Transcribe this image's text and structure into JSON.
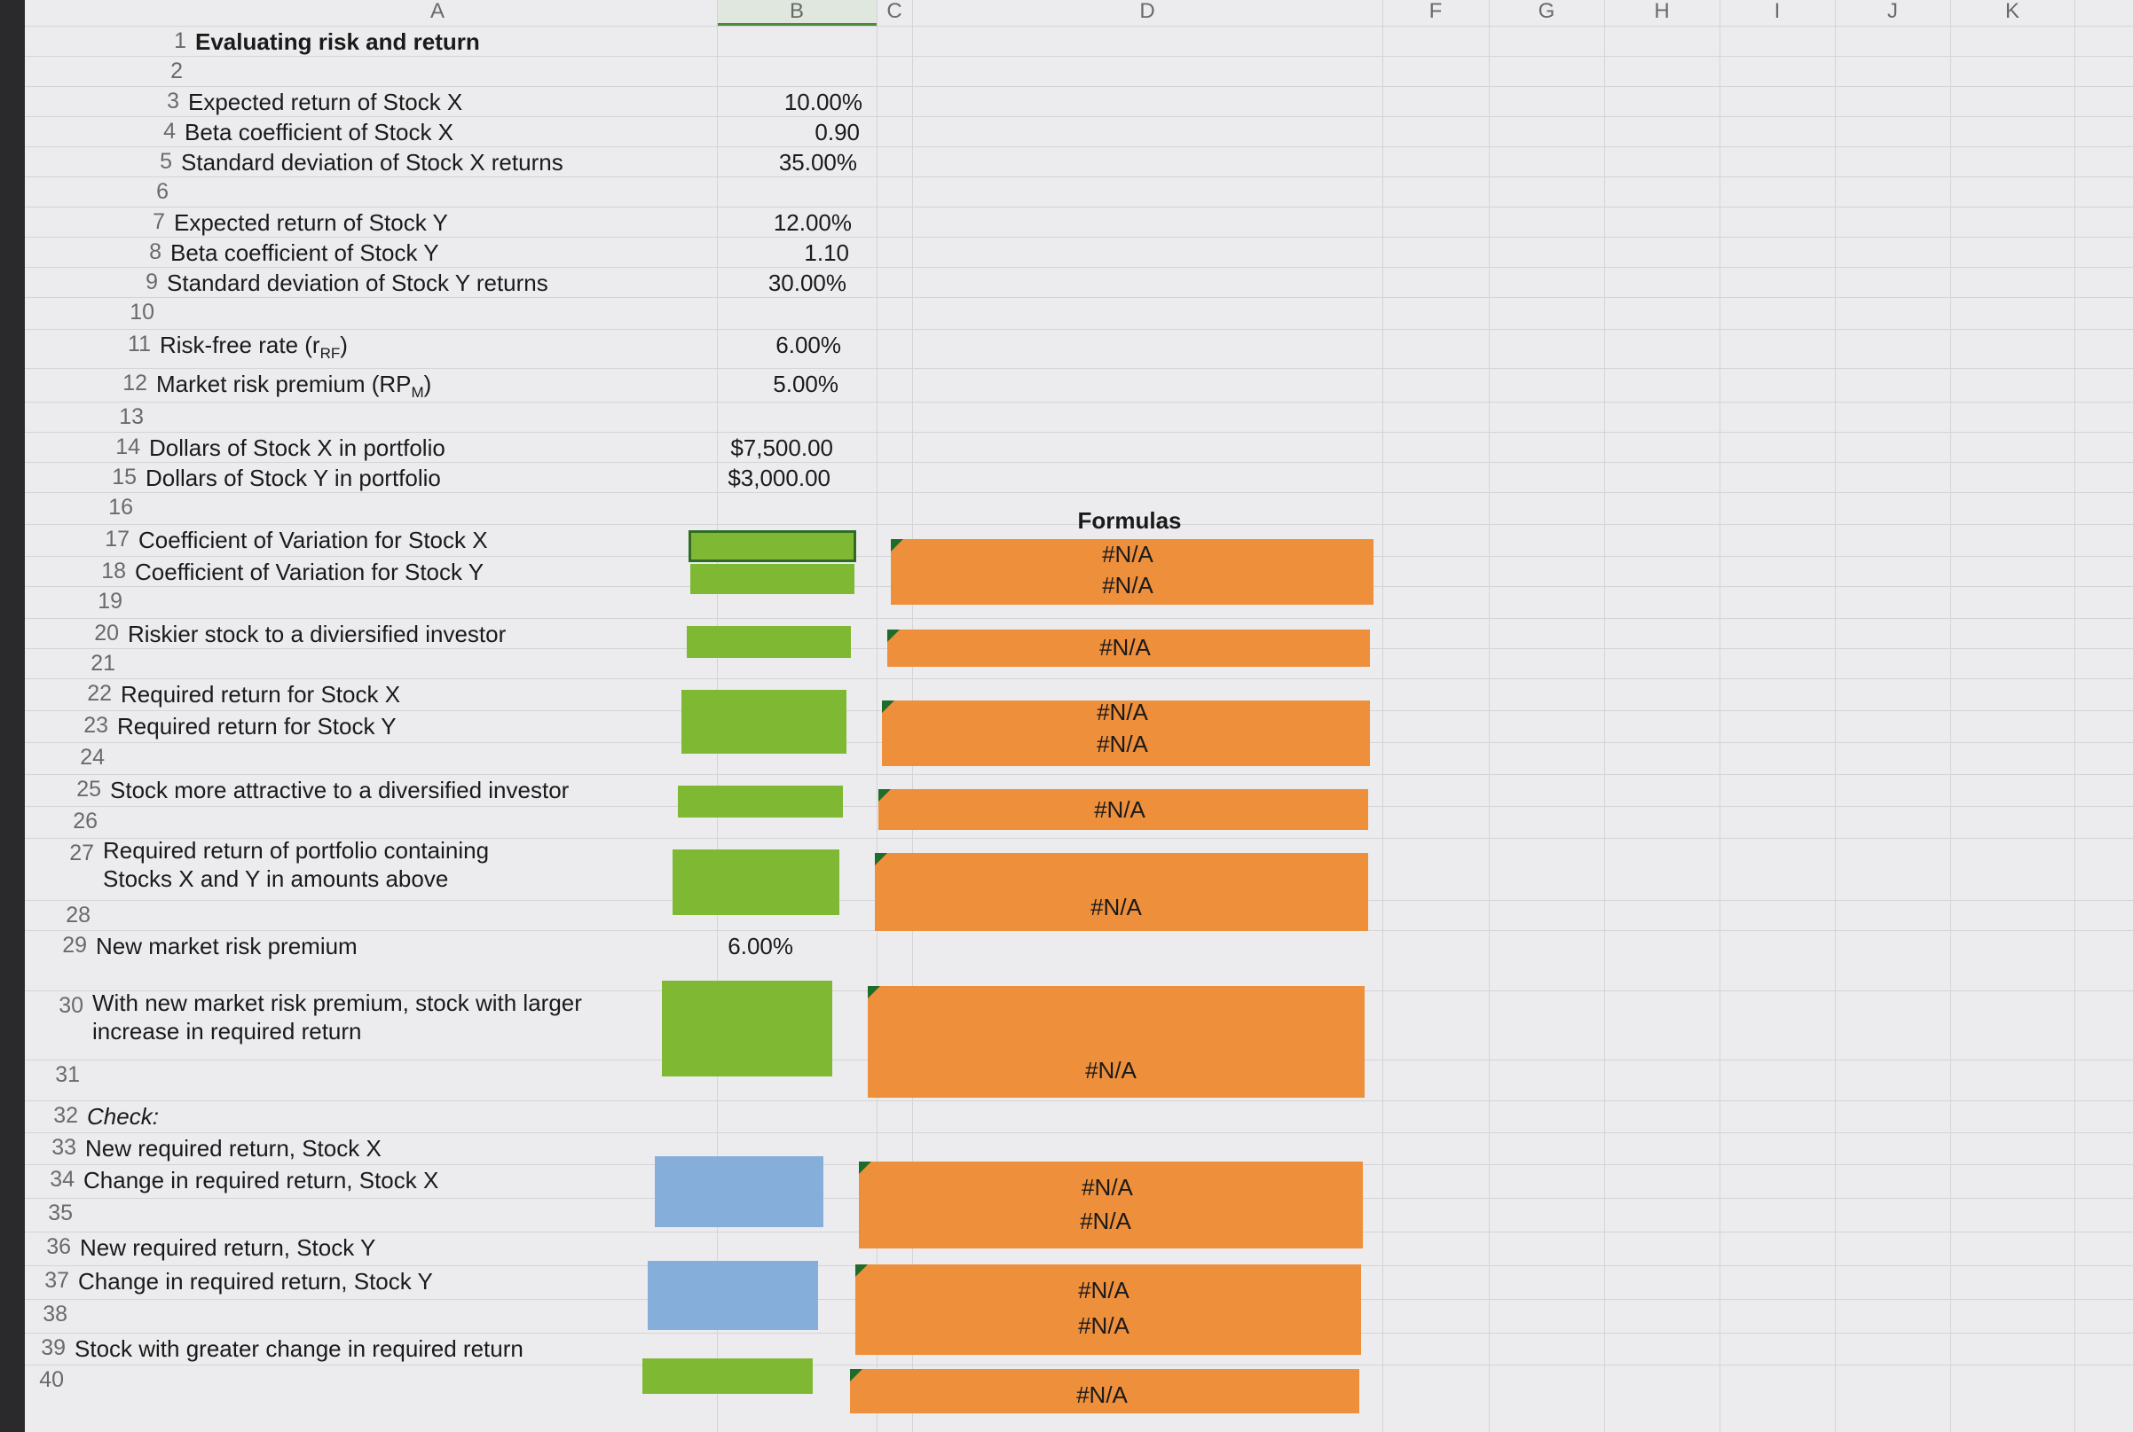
{
  "columns": [
    "A",
    "B",
    "C",
    "D",
    "F",
    "G",
    "H",
    "I",
    "J",
    "K"
  ],
  "rows": [
    {
      "n": "1",
      "label": "Evaluating risk and return",
      "value": "",
      "style": "bold"
    },
    {
      "n": "2",
      "label": "",
      "value": ""
    },
    {
      "n": "3",
      "label": "Expected return of Stock X",
      "value": "10.00%"
    },
    {
      "n": "4",
      "label": "Beta coefficient of Stock X",
      "value": "0.90"
    },
    {
      "n": "5",
      "label": "Standard deviation of Stock X returns",
      "value": "35.00%"
    },
    {
      "n": "6",
      "label": "",
      "value": ""
    },
    {
      "n": "7",
      "label": "Expected return of Stock Y",
      "value": "12.00%"
    },
    {
      "n": "8",
      "label": "Beta coefficient of Stock Y",
      "value": "1.10"
    },
    {
      "n": "9",
      "label": "Standard deviation of Stock Y returns",
      "value": "30.00%"
    },
    {
      "n": "10",
      "label": "",
      "value": ""
    },
    {
      "n": "11",
      "label": "Risk-free rate (r",
      "sub": "RF",
      "label_end": ")",
      "value": "6.00%"
    },
    {
      "n": "12",
      "label": "Market risk premium (RP",
      "sub": "M",
      "label_end": ")",
      "value": "5.00%"
    },
    {
      "n": "13",
      "label": "",
      "value": ""
    },
    {
      "n": "14",
      "label": "Dollars of Stock X in portfolio",
      "value": "$7,500.00"
    },
    {
      "n": "15",
      "label": "Dollars of Stock Y in portfolio",
      "value": "$3,000.00"
    },
    {
      "n": "16",
      "label": "",
      "value": ""
    },
    {
      "n": "17",
      "label": "Coefficient of Variation for Stock X",
      "value": ""
    },
    {
      "n": "18",
      "label": "Coefficient of Variation for Stock Y",
      "value": ""
    },
    {
      "n": "19",
      "label": "",
      "value": ""
    },
    {
      "n": "20",
      "label": "Riskier stock to a diviersified investor",
      "value": ""
    },
    {
      "n": "21",
      "label": "",
      "value": ""
    },
    {
      "n": "22",
      "label": "Required return for Stock X",
      "value": ""
    },
    {
      "n": "23",
      "label": "Required return for Stock Y",
      "value": ""
    },
    {
      "n": "24",
      "label": "",
      "value": ""
    },
    {
      "n": "25",
      "label": "Stock more attractive to a diversified investor",
      "value": ""
    },
    {
      "n": "26",
      "label": "",
      "value": ""
    },
    {
      "n": "27",
      "label": "Required return of portfolio containing",
      "label2": "Stocks X and Y in amounts above",
      "value": ""
    },
    {
      "n": "28",
      "label": "",
      "value": ""
    },
    {
      "n": "29",
      "label": "New market risk premium",
      "value": "6.00%"
    },
    {
      "n": "30",
      "label": "With new market risk premium, stock with larger",
      "label2": "increase in required return",
      "value": ""
    },
    {
      "n": "31",
      "label": "",
      "value": ""
    },
    {
      "n": "32",
      "label": "Check:",
      "value": "",
      "style": "it"
    },
    {
      "n": "33",
      "label": "New required return, Stock X",
      "value": ""
    },
    {
      "n": "34",
      "label": "Change in required return, Stock X",
      "value": ""
    },
    {
      "n": "35",
      "label": "",
      "value": ""
    },
    {
      "n": "36",
      "label": "New required return, Stock Y",
      "value": ""
    },
    {
      "n": "37",
      "label": "Change in required return, Stock Y",
      "value": ""
    },
    {
      "n": "38",
      "label": "",
      "value": ""
    },
    {
      "n": "39",
      "label": "Stock with greater change in required return",
      "value": ""
    },
    {
      "n": "40",
      "label": "",
      "value": ""
    }
  ],
  "formulas_header": "Formulas",
  "formula_results": {
    "r17": "#N/A",
    "r18": "#N/A",
    "r20": "#N/A",
    "r22": "#N/A",
    "r23": "#N/A",
    "r25": "#N/A",
    "r27": "#N/A",
    "r30": "#N/A",
    "r33": "#N/A",
    "r34": "#N/A",
    "r36": "#N/A",
    "r37": "#N/A",
    "r39": "#N/A"
  },
  "colors": {
    "input_green": "#7fb833",
    "check_blue": "#85aedb",
    "formula_orange": "#ee8f3c"
  }
}
